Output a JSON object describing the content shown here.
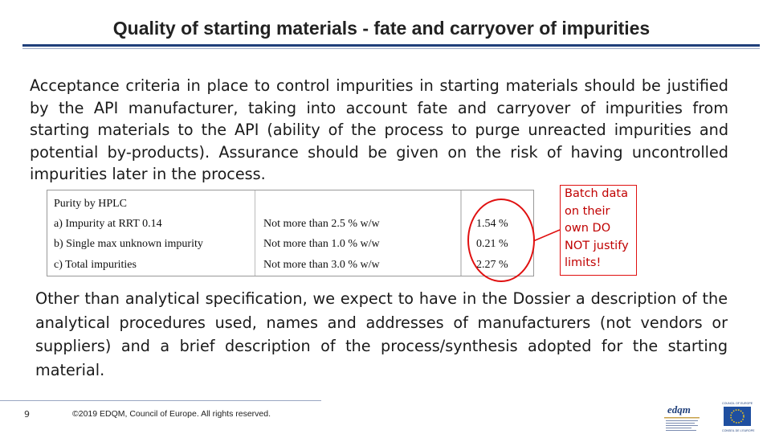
{
  "slide": {
    "title": "Quality of starting materials - fate and carryover of impurities",
    "paragraph1": "Acceptance criteria in place to control impurities in starting materials should be justified by the API manufacturer, taking into account fate and carryover of impurities from starting materials to the API (ability of the process to purge unreacted impurities and potential by-products). Assurance should be given on the risk of having uncontrolled impurities later in the process.",
    "paragraph2": "Other than analytical specification, we expect to have in the Dossier a description of the analytical procedures used, names and addresses of manufacturers (not vendors or suppliers) and a brief description of the process/synthesis adopted for the starting material."
  },
  "hplc_table": {
    "header": "Purity by HPLC",
    "rows": [
      {
        "label": "a)  Impurity  at RRT 0.14",
        "limit": "Not more than  2.5 % w/w",
        "result": "1.54 %"
      },
      {
        "label": "b)  Single max unknown impurity",
        "limit": "Not more than  1.0 % w/w",
        "result": "0.21 %"
      },
      {
        "label": "c)  Total impurities",
        "limit": "Not more than  3.0 % w/w",
        "result": "2.27 %"
      }
    ]
  },
  "callout": {
    "lines": [
      "Batch data",
      "on their",
      "own DO",
      "NOT justify",
      "limits!"
    ],
    "color": "#e01010"
  },
  "footer": {
    "page_number": "9",
    "copyright": "©2019 EDQM, Council of Europe. All rights reserved."
  },
  "logos": {
    "edqm_text": "edqm",
    "coe_text": "COUNCIL OF EUROPE",
    "coe_text_fr": "CONSEIL DE L'EUROPE"
  },
  "colors": {
    "accent_blue": "#1f3f7a",
    "highlight_red": "#e01010"
  }
}
